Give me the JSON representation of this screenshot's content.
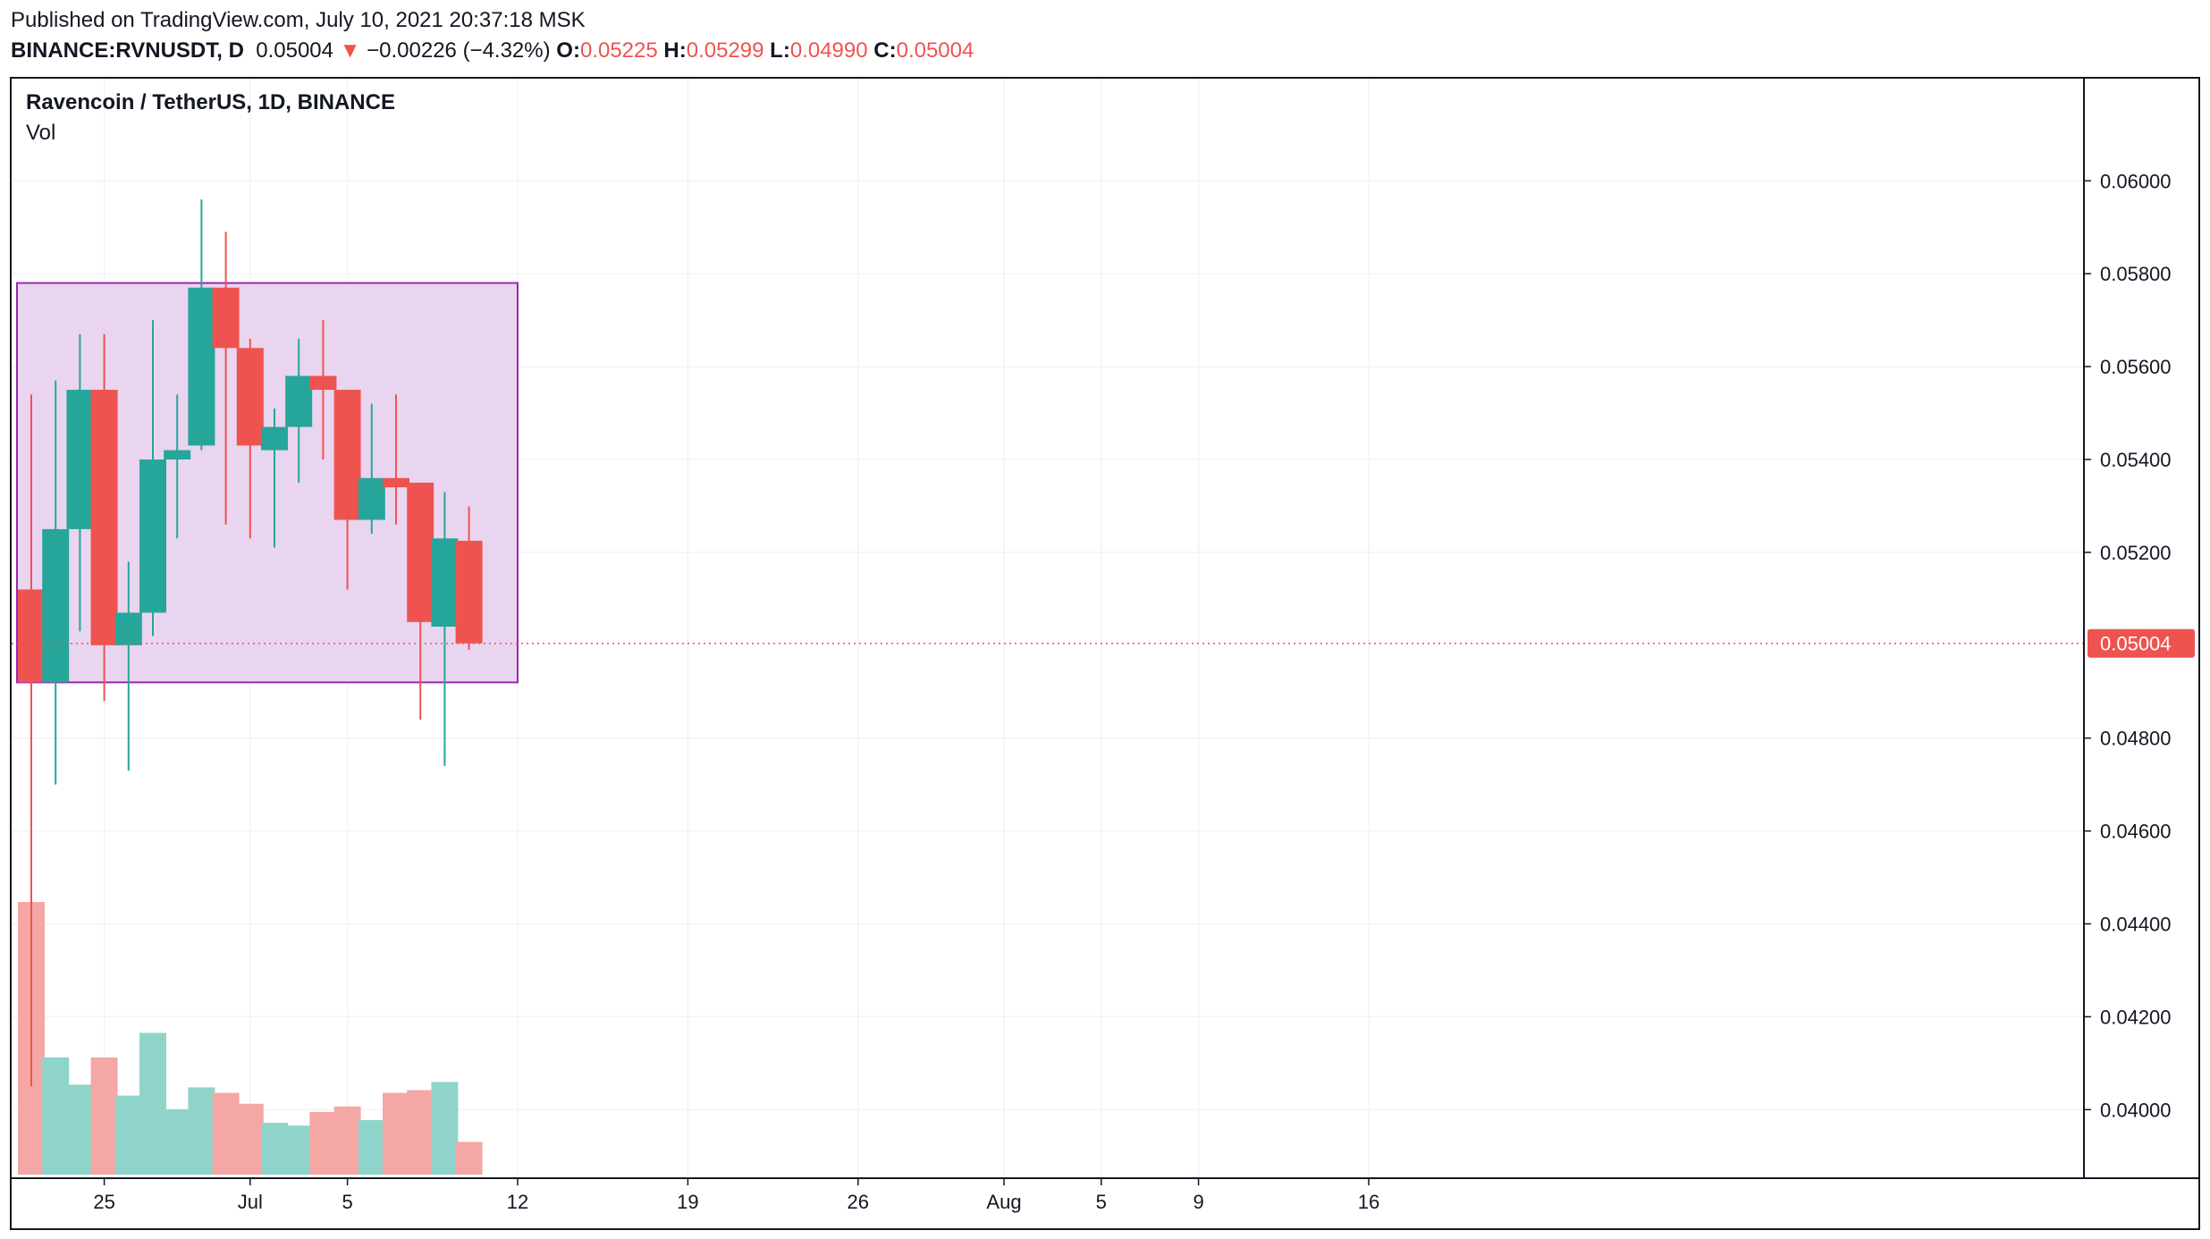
{
  "header": {
    "published": "Published on TradingView.com, July 10, 2021 20:37:18 MSK",
    "symbol_line": {
      "symbol": "BINANCE:RVNUSDT, D",
      "last": "0.05004",
      "arrow": "▼",
      "change": "−0.00226 (−4.32%)",
      "o_label": "O:",
      "o": "0.05225",
      "h_label": "H:",
      "h": "0.05299",
      "l_label": "L:",
      "l": "0.04990",
      "c_label": "C:",
      "c": "0.05004"
    }
  },
  "legend": {
    "title": "Ravencoin / TetherUS, 1D, BINANCE",
    "volume_label": "Vol"
  },
  "colors": {
    "up": "#26a69a",
    "down": "#ef5350",
    "up_volume": "#8fd4ca",
    "down_volume": "#f5a7a5",
    "range_box_fill": "#e9d5ef",
    "range_box_border": "#9c27b0",
    "grid": "#f0f3fa",
    "text": "#131722"
  },
  "chart_data": {
    "type": "candlestick",
    "timeframe": "1D",
    "ylim": [
      0.0386,
      0.0622
    ],
    "y_ticks": [
      "0.06000",
      "0.05800",
      "0.05600",
      "0.05400",
      "0.05200",
      "0.04800",
      "0.04600",
      "0.04400",
      "0.04200",
      "0.04000"
    ],
    "x_ticks": [
      {
        "label": "25",
        "date": "2021-06-25"
      },
      {
        "label": "Jul",
        "date": "2021-07-01"
      },
      {
        "label": "5",
        "date": "2021-07-05"
      },
      {
        "label": "12",
        "date": "2021-07-12"
      },
      {
        "label": "19",
        "date": "2021-07-19"
      },
      {
        "label": "26",
        "date": "2021-07-26"
      },
      {
        "label": "Aug",
        "date": "2021-08-01"
      },
      {
        "label": "5",
        "date": "2021-08-05"
      },
      {
        "label": "9",
        "date": "2021-08-09"
      },
      {
        "label": "16",
        "date": "2021-08-16"
      }
    ],
    "last_price": "0.05004",
    "candles": [
      {
        "date": "2021-06-22",
        "open": 0.0512,
        "high": 0.0554,
        "low": 0.0405,
        "close": 0.0492,
        "volume": 1.0
      },
      {
        "date": "2021-06-23",
        "open": 0.0492,
        "high": 0.0557,
        "low": 0.047,
        "close": 0.0525,
        "volume": 0.43
      },
      {
        "date": "2021-06-24",
        "open": 0.0525,
        "high": 0.0567,
        "low": 0.0503,
        "close": 0.0555,
        "volume": 0.33
      },
      {
        "date": "2021-06-25",
        "open": 0.0555,
        "high": 0.0567,
        "low": 0.0488,
        "close": 0.05,
        "volume": 0.43
      },
      {
        "date": "2021-06-26",
        "open": 0.05,
        "high": 0.0518,
        "low": 0.0473,
        "close": 0.0507,
        "volume": 0.29
      },
      {
        "date": "2021-06-27",
        "open": 0.0507,
        "high": 0.057,
        "low": 0.0502,
        "close": 0.054,
        "volume": 0.52
      },
      {
        "date": "2021-06-28",
        "open": 0.054,
        "high": 0.0554,
        "low": 0.0523,
        "close": 0.0542,
        "volume": 0.24
      },
      {
        "date": "2021-06-29",
        "open": 0.0543,
        "high": 0.0596,
        "low": 0.0542,
        "close": 0.0577,
        "volume": 0.32
      },
      {
        "date": "2021-06-30",
        "open": 0.0577,
        "high": 0.0589,
        "low": 0.0526,
        "close": 0.0564,
        "volume": 0.3
      },
      {
        "date": "2021-07-01",
        "open": 0.0564,
        "high": 0.0566,
        "low": 0.0523,
        "close": 0.0543,
        "volume": 0.26
      },
      {
        "date": "2021-07-02",
        "open": 0.0542,
        "high": 0.0551,
        "low": 0.0521,
        "close": 0.0547,
        "volume": 0.19
      },
      {
        "date": "2021-07-03",
        "open": 0.0547,
        "high": 0.0566,
        "low": 0.0535,
        "close": 0.0558,
        "volume": 0.18
      },
      {
        "date": "2021-07-04",
        "open": 0.0558,
        "high": 0.057,
        "low": 0.054,
        "close": 0.0555,
        "volume": 0.23
      },
      {
        "date": "2021-07-05",
        "open": 0.0555,
        "high": 0.0555,
        "low": 0.0512,
        "close": 0.0527,
        "volume": 0.25
      },
      {
        "date": "2021-07-06",
        "open": 0.0527,
        "high": 0.0552,
        "low": 0.0524,
        "close": 0.0536,
        "volume": 0.2
      },
      {
        "date": "2021-07-07",
        "open": 0.0536,
        "high": 0.0554,
        "low": 0.0526,
        "close": 0.0534,
        "volume": 0.3
      },
      {
        "date": "2021-07-08",
        "open": 0.0535,
        "high": 0.0535,
        "low": 0.0484,
        "close": 0.0505,
        "volume": 0.31
      },
      {
        "date": "2021-07-09",
        "open": 0.0504,
        "high": 0.0533,
        "low": 0.0474,
        "close": 0.0523,
        "volume": 0.34
      },
      {
        "date": "2021-07-10",
        "open": 0.05225,
        "high": 0.05299,
        "low": 0.0499,
        "close": 0.05004,
        "volume": 0.12
      }
    ],
    "range_box": {
      "start_date": "2021-06-22",
      "end_date": "2021-07-12",
      "top": 0.0578,
      "bottom": 0.0492
    }
  }
}
